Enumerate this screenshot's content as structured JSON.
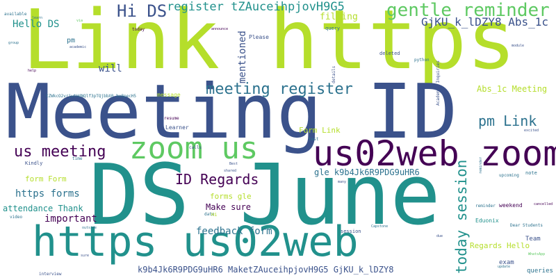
{
  "colors": {
    "background": "#ffffff",
    "lime": "#b5de2b",
    "navy": "#3b528b",
    "teal": "#21918c",
    "purple": "#440154",
    "green": "#5ec962",
    "cyan": "#2c728e",
    "blue": "#31688e"
  },
  "words": {
    "link_https": "Link https",
    "meeting_id": "Meeting ID",
    "ds_june": "DS June",
    "https_us02web": "https us02web",
    "us02web_zoom": "us02web zoom",
    "zoom_us": "zoom us",
    "meeting_register": "meeting register",
    "us_meeting": "us meeting",
    "gentle_reminder": "gentle reminder",
    "register_tz": "register tZAuceihpjovH9G5",
    "hi_ds": "Hi DS",
    "hello_ds": "Hello DS",
    "today_session": "today session",
    "pm_link": "pm Link",
    "id_regards": "ID Regards",
    "gjku_abs": "GjKU_k_lDZY8 Abs_1c",
    "abs_meeting": "Abs_1c Meeting",
    "mentioned": "mentioned",
    "filling": "filling",
    "will": "will",
    "form_link": "Form Link",
    "gle_k9b": "gle k9b4Jk6R9PDG9uHR6",
    "https_forms": "https forms",
    "attendance_thank": "attendance Thank",
    "important": "important",
    "form_form": "form Form",
    "make_sure": "Make sure",
    "forms_gle": "forms gle",
    "feedback_form": "feedback form",
    "regards_hello": "Regards Hello",
    "k9b_bottom": "k9b4Jk6R9PDG9uHR6 MaketZAuceihpjovH9G5 GjKU_k_lDZY8",
    "pm": "pm",
    "upcoming": "upcoming",
    "weekend": "weekend",
    "edunix": "Eduonix",
    "team": "Team",
    "exam": "exam",
    "queries": "queries",
    "dear_students": "Dear Students",
    "reminder": "reminder",
    "session": "session",
    "learner": "Learner",
    "resume": "resume",
    "message": "message",
    "please": "Please",
    "deleted": "deleted",
    "query": "query",
    "python": "python",
    "academic_inquiries": "Academic Inquiries",
    "kindly": "Kindly",
    "time": "time",
    "date": "date",
    "hi": "Hi",
    "test": "test",
    "note": "note",
    "capstone": "Capstone",
    "interview": "interview",
    "video": "video",
    "outside": "outside",
    "sure": "sure",
    "calls": "calls",
    "available": "available",
    "learn": "learn",
    "share": "share",
    "today": "today",
    "announce": "announce",
    "github": "github",
    "details": "details",
    "mails": "mails",
    "module": "module",
    "cancelled": "cancelled",
    "excited": "excited",
    "whatsapp": "WhatsApp",
    "update": "update",
    "certificate": "certificate",
    "best": "Best",
    "shared": "shared",
    "many": "many",
    "due": "due",
    "help": "help",
    "lab": "lab",
    "code": "code",
    "join": "join",
    "via": "via",
    "group": "group",
    "academic": "academic",
    "long_link": "tZWkcO2vrjwtHdNQlf3pTQjbbX0 bu8pecH5"
  }
}
